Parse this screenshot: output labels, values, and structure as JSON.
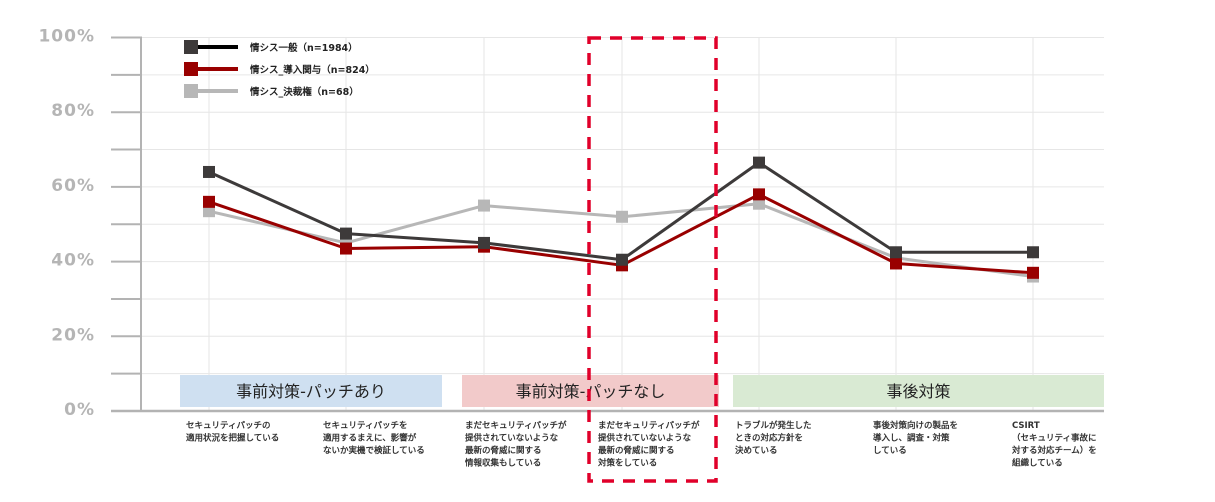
{
  "chart_data": {
    "type": "line",
    "title": "",
    "xlabel": "",
    "ylabel": "",
    "ylim": [
      0,
      100
    ],
    "y_ticks": [
      "0%",
      "20%",
      "40%",
      "60%",
      "80%",
      "100%"
    ],
    "grid": true,
    "legend_position": "top-left inside",
    "categories": [
      [
        "セキュリティパッチの",
        "適用状況を把握している"
      ],
      [
        "セキュリティパッチを",
        "適用するまえに、影響が",
        "ないか実機で検証している"
      ],
      [
        "まだセキュリティパッチが",
        "提供されていないような",
        "最新の脅威に関する",
        "情報収集もしている"
      ],
      [
        "まだセキュリティパッチが",
        "提供されていないような",
        "最新の脅威に関する",
        "対策をしている"
      ],
      [
        "トラブルが発生した",
        "ときの対応方針を",
        "決めている"
      ],
      [
        "事後対策向けの製品を",
        "導入し、調査・対策",
        "している"
      ],
      [
        "CSIRT",
        "（セキュリティ事故に",
        "対する対応チーム）を",
        "組織している"
      ]
    ],
    "series": [
      {
        "name": "情シス一般（n=1984）",
        "color": "#3d3a3a",
        "values": [
          64,
          47.5,
          45,
          40.5,
          66.5,
          42.5,
          42.5
        ]
      },
      {
        "name": "情シス_導入関与（n=824）",
        "color": "#990000",
        "values": [
          56,
          43.5,
          44,
          39,
          58,
          39.5,
          37
        ]
      },
      {
        "name": "情シス_決裁権（n=68）",
        "color": "#b7b7b7",
        "values": [
          53.5,
          45,
          55,
          52,
          55.5,
          41,
          36
        ]
      }
    ],
    "groups": [
      {
        "label": "事前対策-パッチあり",
        "color": "#cfe0f1",
        "from": 0,
        "to": 1
      },
      {
        "label": "事前対策-パッチなし",
        "color": "#f2caca",
        "from": 2,
        "to": 3
      },
      {
        "label": "事後対策",
        "color": "#d9ead3",
        "from": 4,
        "to": 6
      }
    ],
    "annotations": [
      {
        "type": "dashed-rectangle",
        "color": "#e0002a",
        "highlight_category_index": 3
      }
    ]
  }
}
